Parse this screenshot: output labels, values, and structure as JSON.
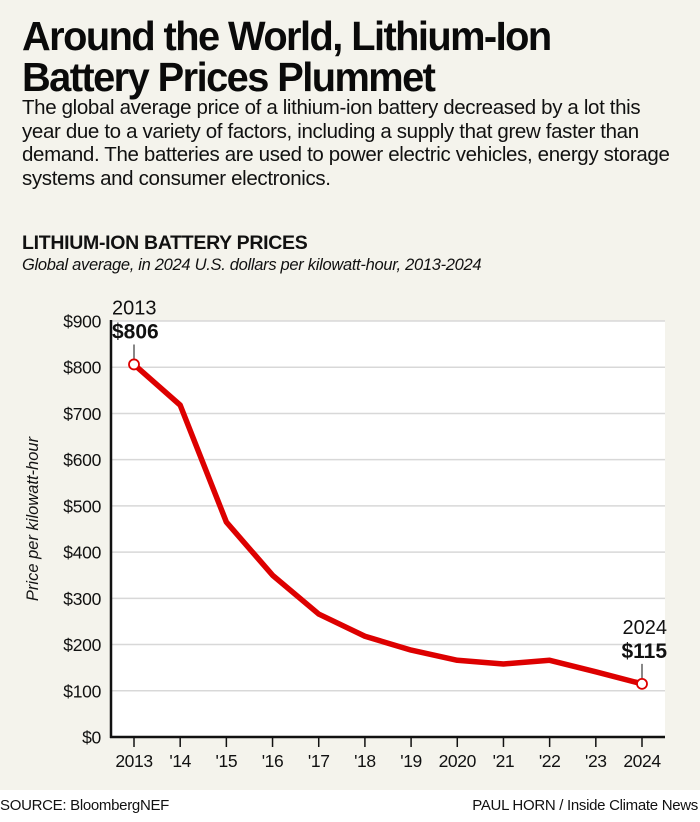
{
  "headline": "Around the World, Lithium-Ion Battery Prices Plummet",
  "dek": "The global average price of a lithium-ion battery decreased by a lot this year due to a variety of factors, including a supply that grew faster than demand. The batteries are used to power electric vehicles, energy storage systems and consumer electronics.",
  "footer": {
    "source": "SOURCE: BloombergNEF",
    "credit": "PAUL HORN / Inside Climate News"
  },
  "colors": {
    "line": "#dd0000",
    "background": "#f4f3ec",
    "plot_background": "#ffffff",
    "gridline": "#d8d8d8",
    "axis": "#111111"
  },
  "chart_data": {
    "type": "line",
    "title": "LITHIUM-ION BATTERY PRICES",
    "subtitle": "Global average, in 2024 U.S. dollars per kilowatt-hour, 2013-2024",
    "xlabel": "",
    "ylabel": "Price per kilowatt-hour",
    "x": [
      2013,
      2014,
      2015,
      2016,
      2017,
      2018,
      2019,
      2020,
      2021,
      2022,
      2023,
      2024
    ],
    "x_tick_labels": [
      "2013",
      "'14",
      "'15",
      "'16",
      "'17",
      "'18",
      "'19",
      "2020",
      "'21",
      "'22",
      "'23",
      "2024"
    ],
    "series": [
      {
        "name": "Lithium-ion battery price",
        "values": [
          806,
          718,
          465,
          350,
          266,
          218,
          188,
          166,
          158,
          166,
          141,
          115
        ]
      }
    ],
    "ylim": [
      0,
      900
    ],
    "y_ticks": [
      0,
      100,
      200,
      300,
      400,
      500,
      600,
      700,
      800,
      900
    ],
    "y_tick_labels": [
      "$0",
      "$100",
      "$200",
      "$300",
      "$400",
      "$500",
      "$600",
      "$700",
      "$800",
      "$900"
    ],
    "grid": true,
    "legend": "none",
    "annotations": [
      {
        "index": 0,
        "year_label": "2013",
        "value_label": "$806"
      },
      {
        "index": 11,
        "year_label": "2024",
        "value_label": "$115"
      }
    ]
  }
}
